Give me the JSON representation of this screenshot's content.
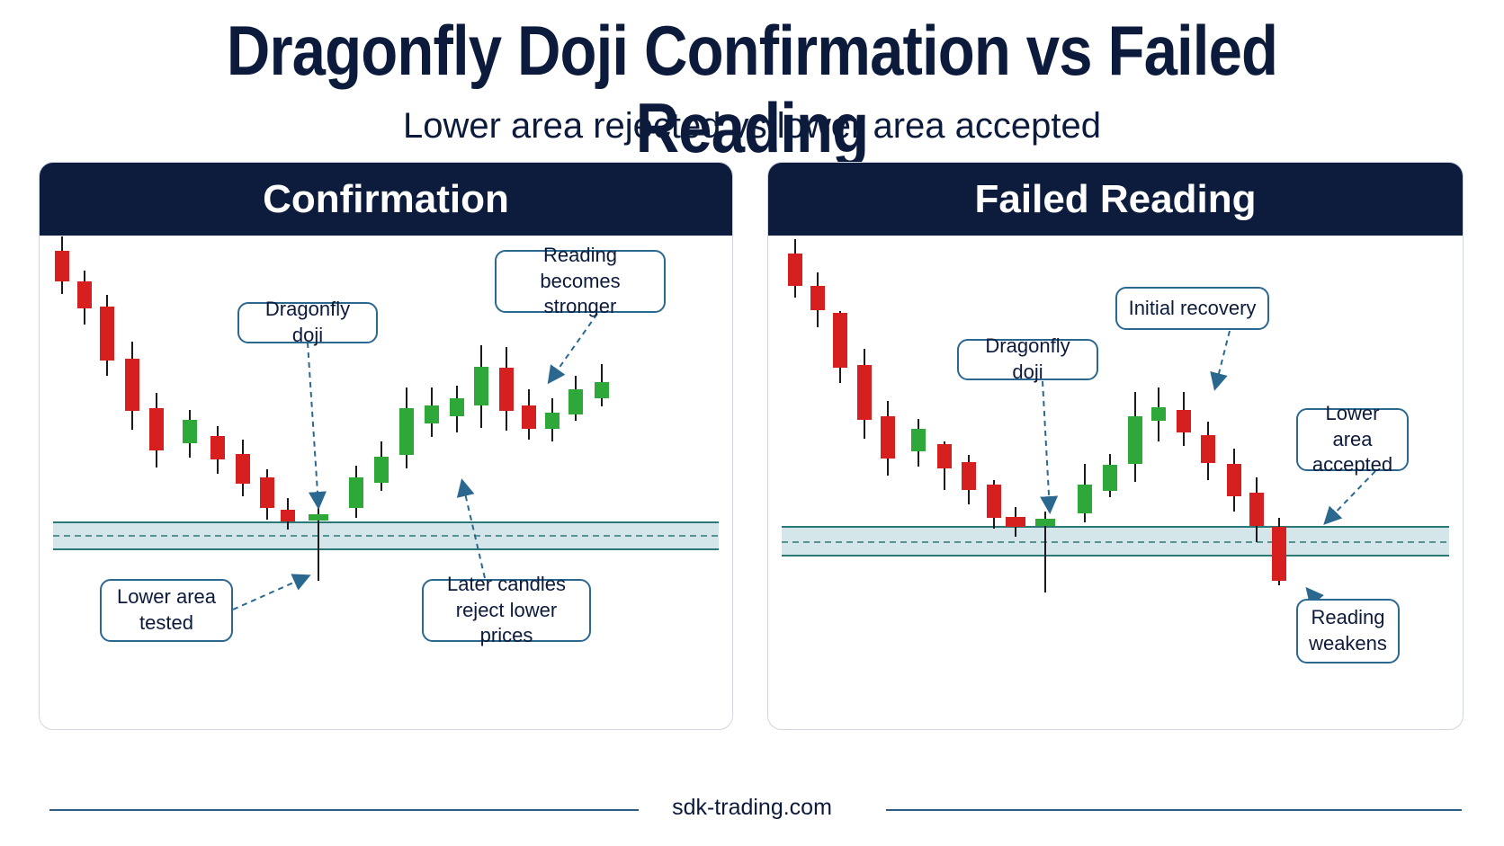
{
  "title": "Dragonfly Doji Confirmation vs Failed Reading",
  "subtitle": "Lower area rejected vs lower area accepted",
  "colors": {
    "bull": "#2fa83a",
    "bear": "#d62020",
    "zone": "#d5e6ea",
    "zone_line": "#2a7878",
    "header": "#0d1c3d",
    "callout_border": "#2b6890"
  },
  "panels": [
    {
      "heading": "Confirmation",
      "labels": {
        "doji": "Dragonfly doji",
        "stronger_1": "Reading becomes",
        "stronger_2": "stronger",
        "tested_1": "Lower area",
        "tested_2": "tested",
        "reject_1": "Later candles",
        "reject_2": "reject lower prices"
      }
    },
    {
      "heading": "Failed Reading",
      "labels": {
        "doji": "Dragonfly doji",
        "recovery": "Initial recovery",
        "accepted_1": "Lower area",
        "accepted_2": "accepted",
        "weakens_1": "Reading",
        "weakens_2": "weakens"
      }
    }
  ],
  "footer": "sdk-trading.com"
}
